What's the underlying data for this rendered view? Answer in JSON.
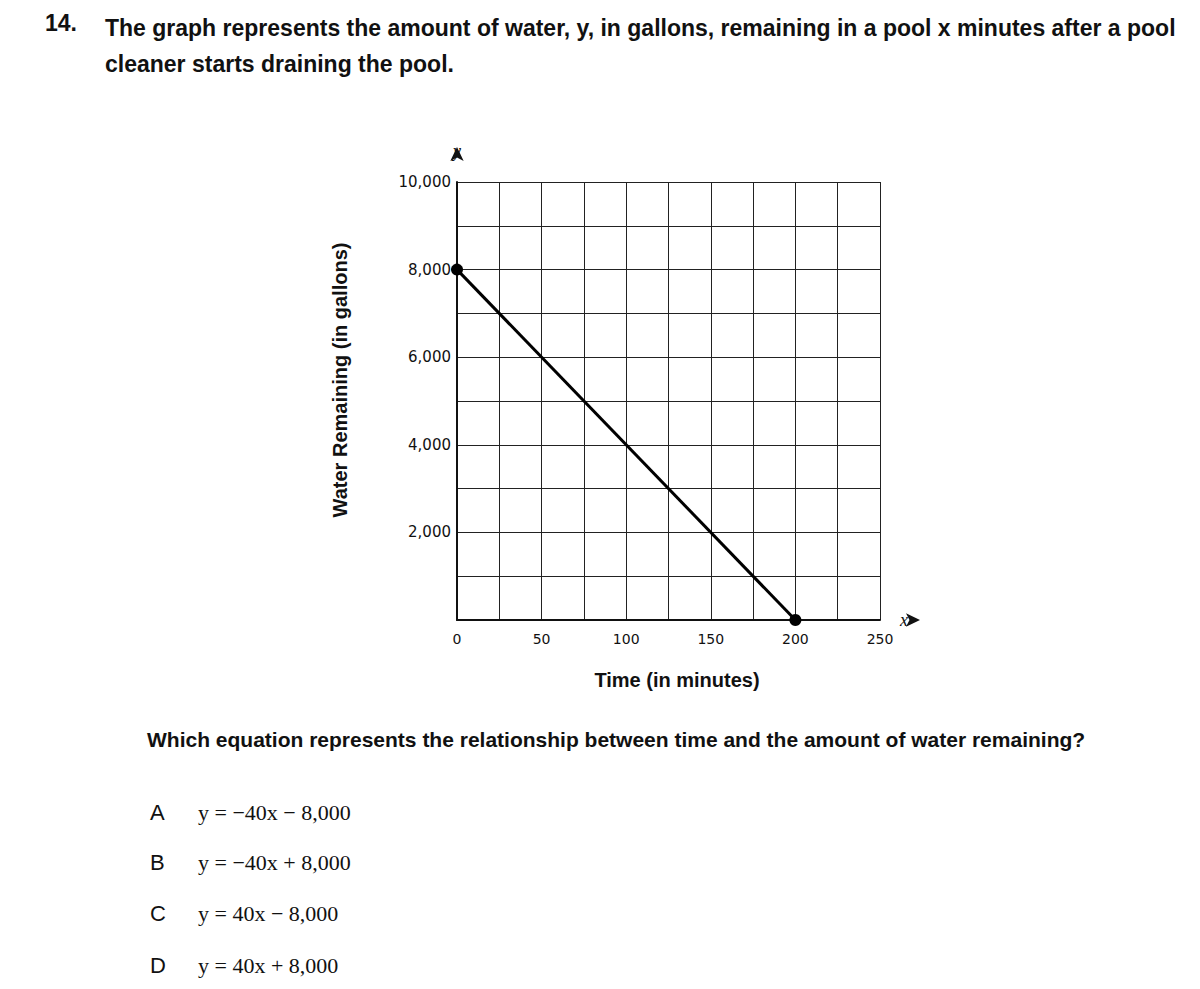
{
  "question_number": "14.",
  "prompt": "The graph represents the amount of water, y, in gallons, remaining in a pool x minutes after a pool cleaner starts draining the pool.",
  "chart_data": {
    "type": "line",
    "x_label": "Time (in minutes)",
    "y_label": "Water Remaining (in gallons)",
    "x_axis_name": "x",
    "y_axis_name": "y",
    "x": [
      0,
      200
    ],
    "values": [
      8000,
      0
    ],
    "color": "#000000",
    "marker": "circle",
    "xlim": [
      0,
      250
    ],
    "xticks": [
      0,
      50,
      100,
      150,
      200,
      250
    ],
    "ylim": [
      0,
      10000
    ],
    "yticks": [
      {
        "value": 2000,
        "label": "2,000"
      },
      {
        "value": 4000,
        "label": "4,000"
      },
      {
        "value": 6000,
        "label": "6,000"
      },
      {
        "value": 8000,
        "label": "8,000"
      },
      {
        "value": 10000,
        "label": "10,000"
      }
    ],
    "grid": true
  },
  "question": "Which equation represents the relationship between time and the amount of water remaining?",
  "choices": [
    {
      "letter": "A",
      "equation": "y = −40x − 8,000"
    },
    {
      "letter": "B",
      "equation": "y = −40x + 8,000"
    },
    {
      "letter": "C",
      "equation": "y = 40x − 8,000"
    },
    {
      "letter": "D",
      "equation": "y = 40x + 8,000"
    }
  ]
}
